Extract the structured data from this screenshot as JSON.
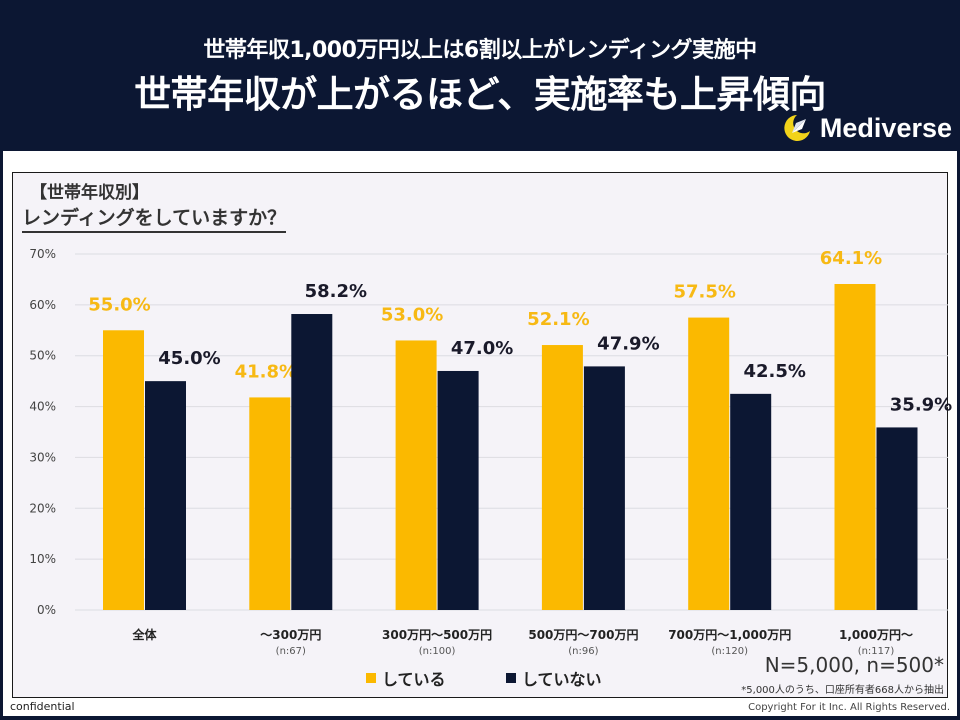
{
  "header": {
    "subtitle": "世帯年収1,000万円以上は6割以上がレンディング実施中",
    "title": "世帯年収が上がるほど、実施率も上昇傾向",
    "brand": "Mediverse",
    "brand_icon": "crescent-rocket-logo"
  },
  "panel": {
    "heading": "【世帯年収別】",
    "question": "レンディングをしていますか？"
  },
  "colors": {
    "doing": "#fbb900",
    "not_doing": "#0c1733",
    "label_doing": "#f7b914",
    "label_not_doing": "#1a1a2a",
    "grid": "#dcdce2"
  },
  "chart_data": {
    "type": "bar",
    "title": "レンディングをしていますか？",
    "xlabel": "",
    "ylabel": "",
    "ylim": [
      0,
      70
    ],
    "yticks": [
      "0%",
      "10%",
      "20%",
      "30%",
      "40%",
      "50%",
      "60%",
      "70%"
    ],
    "ytick_values": [
      0,
      10,
      20,
      30,
      40,
      50,
      60,
      70
    ],
    "grid": true,
    "legend_position": "bottom",
    "categories": [
      "全体",
      "～300万円",
      "300万円～500万円",
      "500万円～700万円",
      "700万円～1,000万円",
      "1,000万円～"
    ],
    "category_sublabels": [
      "",
      "(n:67)",
      "(n:100)",
      "(n:96)",
      "(n:120)",
      "(n:117)"
    ],
    "series": [
      {
        "name": "している",
        "values": [
          55.0,
          41.8,
          53.0,
          52.1,
          57.5,
          64.1
        ],
        "labels": [
          "55.0%",
          "41.8%",
          "53.0%",
          "52.1%",
          "57.5%",
          "64.1%"
        ]
      },
      {
        "name": "していない",
        "values": [
          45.0,
          58.2,
          47.0,
          47.9,
          42.5,
          35.9
        ],
        "labels": [
          "45.0%",
          "58.2%",
          "47.0%",
          "47.9%",
          "42.5%",
          "35.9%"
        ]
      }
    ]
  },
  "notes": {
    "sample": "N=5,000, n=500*",
    "footnote": "*5,000人のうち、口座所有者668人から抽出",
    "confidential": "confidential",
    "copyright": "Copyright For it Inc. All Rights Reserved."
  }
}
